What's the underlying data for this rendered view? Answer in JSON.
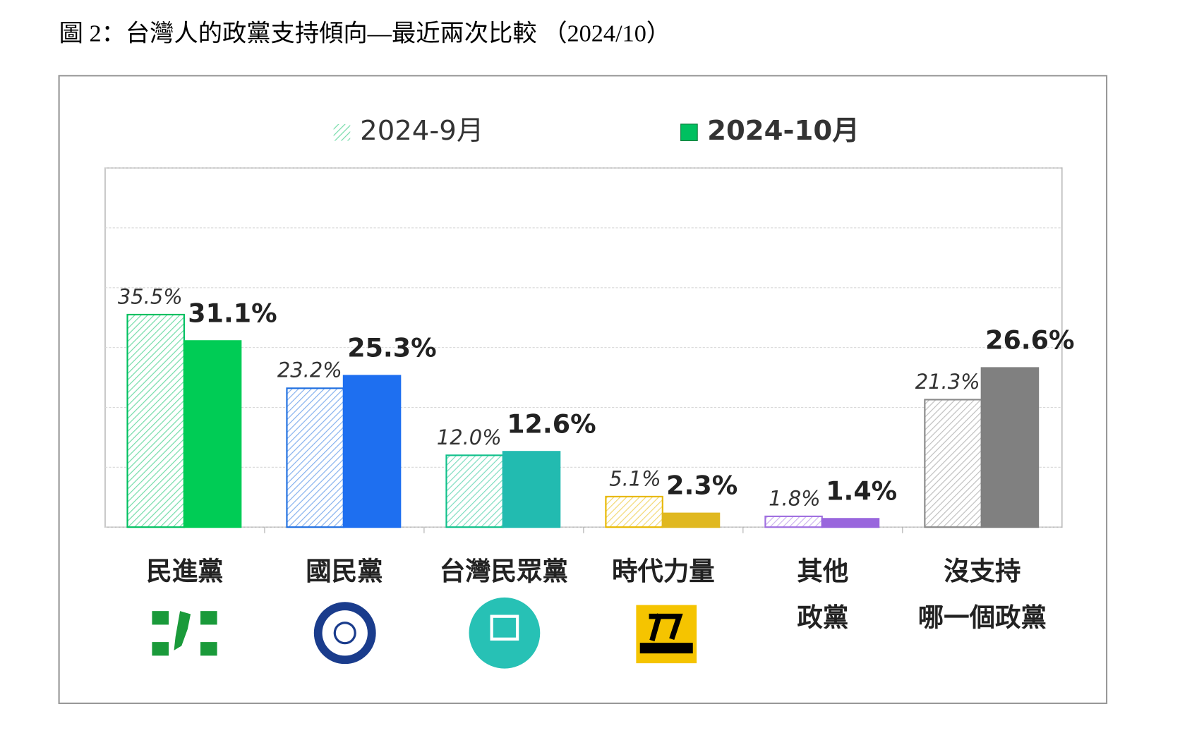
{
  "chart_data": {
    "type": "bar",
    "title": "圖 2：台灣人的政黨支持傾向—最近兩次比較 （2024/10）",
    "categories": [
      "民進黨",
      "國民黨",
      "台灣民眾黨",
      "時代力量",
      "其他\n政黨",
      "沒支持\n哪一個政黨"
    ],
    "series": [
      {
        "name": "2024-9月",
        "color": "#00c060",
        "pattern": "hatched",
        "colors": [
          "#00c060",
          "#1f6fe0",
          "#10c08a",
          "#e8b800",
          "#a070e0",
          "#8a8a8a"
        ],
        "values": [
          35.5,
          23.2,
          12.0,
          5.1,
          1.8,
          21.3
        ],
        "value_labels": [
          "35.5%",
          "23.2%",
          "12.0%",
          "5.1%",
          "1.8%",
          "21.3%"
        ]
      },
      {
        "name": "2024-10月",
        "color": "#00c060",
        "pattern": "solid",
        "colors": [
          "#00cc55",
          "#1e6ff0",
          "#22bbb0",
          "#e0b820",
          "#9966dd",
          "#808080"
        ],
        "values": [
          31.1,
          25.3,
          12.6,
          2.3,
          1.4,
          26.6
        ],
        "value_labels": [
          "31.1%",
          "25.3%",
          "12.6%",
          "2.3%",
          "1.4%",
          "26.6%"
        ]
      }
    ],
    "ylim": [
      0,
      60
    ],
    "yticks": [
      0,
      10,
      20,
      30,
      40,
      50,
      60
    ],
    "grid": true
  }
}
